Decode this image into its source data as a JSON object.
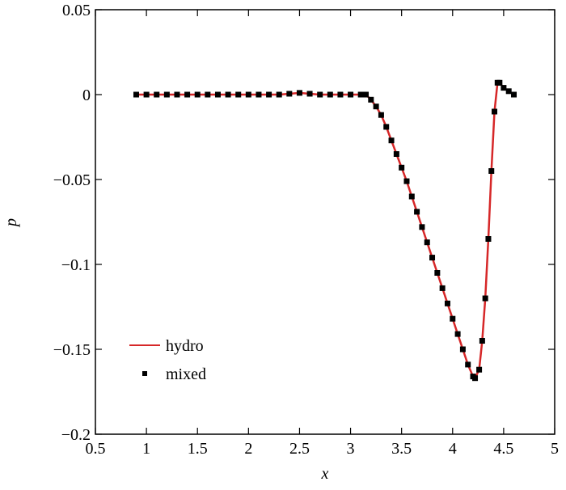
{
  "chart_data": {
    "type": "line",
    "xlabel": "x",
    "ylabel": "p",
    "x": [
      0.9,
      1.0,
      1.1,
      1.2,
      1.3,
      1.4,
      1.5,
      1.6,
      1.7,
      1.8,
      1.9,
      2.0,
      2.1,
      2.2,
      2.3,
      2.4,
      2.5,
      2.6,
      2.7,
      2.8,
      2.9,
      3.0,
      3.1,
      3.15,
      3.2,
      3.25,
      3.3,
      3.35,
      3.4,
      3.45,
      3.5,
      3.55,
      3.6,
      3.65,
      3.7,
      3.75,
      3.8,
      3.85,
      3.9,
      3.95,
      4.0,
      4.05,
      4.1,
      4.15,
      4.2,
      4.22,
      4.26,
      4.29,
      4.32,
      4.35,
      4.38,
      4.41,
      4.44,
      4.46,
      4.5,
      4.55,
      4.6
    ],
    "series": [
      {
        "name": "hydro",
        "color": "#d62728",
        "style": "line",
        "values": [
          0,
          0,
          0,
          0,
          0,
          0,
          0,
          0,
          0,
          0,
          0,
          0,
          0,
          0,
          0,
          0.0005,
          0.001,
          0.0005,
          0,
          0,
          0,
          0,
          0,
          0,
          -0.003,
          -0.007,
          -0.012,
          -0.019,
          -0.027,
          -0.035,
          -0.043,
          -0.051,
          -0.06,
          -0.069,
          -0.078,
          -0.087,
          -0.096,
          -0.105,
          -0.114,
          -0.123,
          -0.132,
          -0.141,
          -0.15,
          -0.159,
          -0.166,
          -0.167,
          -0.162,
          -0.145,
          -0.12,
          -0.085,
          -0.045,
          -0.01,
          0.007,
          0.007,
          0.004,
          0.002,
          0
        ]
      },
      {
        "name": "mixed",
        "color": "#000000",
        "style": "markers",
        "values": [
          0,
          0,
          0,
          0,
          0,
          0,
          0,
          0,
          0,
          0,
          0,
          0,
          0,
          0,
          0,
          0.0005,
          0.001,
          0.0005,
          0,
          0,
          0,
          0,
          0,
          0,
          -0.003,
          -0.007,
          -0.012,
          -0.019,
          -0.027,
          -0.035,
          -0.043,
          -0.051,
          -0.06,
          -0.069,
          -0.078,
          -0.087,
          -0.096,
          -0.105,
          -0.114,
          -0.123,
          -0.132,
          -0.141,
          -0.15,
          -0.159,
          -0.166,
          -0.167,
          -0.162,
          -0.145,
          -0.12,
          -0.085,
          -0.045,
          -0.01,
          0.007,
          0.007,
          0.004,
          0.002,
          0
        ]
      }
    ],
    "xlim": [
      0.5,
      5
    ],
    "xticks": [
      0.5,
      1,
      1.5,
      2,
      2.5,
      3,
      3.5,
      4,
      4.5,
      5
    ],
    "ylim": [
      -0.2,
      0.05
    ],
    "yticks": [
      {
        "value": -0.2,
        "label": "−0.2"
      },
      {
        "value": -0.15,
        "label": "−0.15"
      },
      {
        "value": -0.1,
        "label": "−0.1"
      },
      {
        "value": -0.05,
        "label": "−0.05"
      },
      0,
      0.05
    ],
    "grid": false,
    "legend": "lower left"
  }
}
